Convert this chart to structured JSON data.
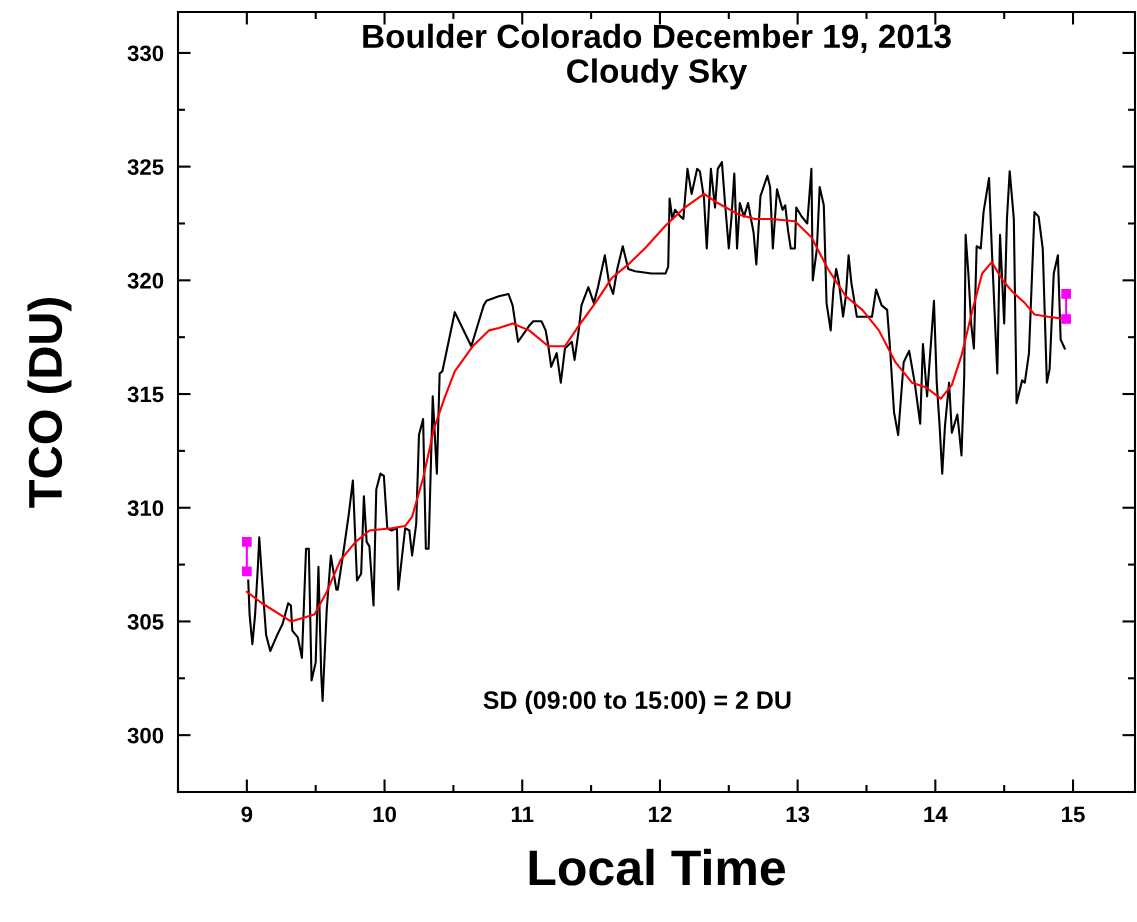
{
  "chart_data": {
    "type": "line",
    "title": "Boulder Colorado December 19, 2013\nCloudy Sky",
    "xlabel": "Local Time",
    "ylabel": "TCO (DU)",
    "xlim": [
      8.5,
      15.45
    ],
    "xticks": [
      9,
      10,
      11,
      12,
      13,
      14,
      15
    ],
    "ylim": [
      297.5,
      331.8
    ],
    "yticks": [
      300,
      305,
      310,
      315,
      320,
      325,
      330
    ],
    "grid": false,
    "annotations": [
      "SD (09:00 to 15:00) = 2 DU"
    ],
    "series": [
      {
        "color": "#000000",
        "marker": "none",
        "x": [
          9.01,
          9.02,
          9.04,
          9.06,
          9.08,
          9.09,
          9.11,
          9.14,
          9.17,
          9.22,
          9.26,
          9.3,
          9.32,
          9.33,
          9.37,
          9.4,
          9.43,
          9.45,
          9.47,
          9.5,
          9.52,
          9.54,
          9.55,
          9.58,
          9.61,
          9.65,
          9.66,
          9.7,
          9.74,
          9.77,
          9.8,
          9.83,
          9.85,
          9.87,
          9.89,
          9.92,
          9.94,
          9.97,
          9.995,
          10.02,
          10.05,
          10.09,
          10.1,
          10.15,
          10.18,
          10.2,
          10.23,
          10.25,
          10.28,
          10.3,
          10.32,
          10.35,
          10.38,
          10.4,
          10.42,
          10.51,
          10.63,
          10.68,
          10.72,
          10.74,
          10.83,
          10.9,
          10.93,
          10.97,
          11.05,
          11.08,
          11.14,
          11.17,
          11.19,
          11.21,
          11.25,
          11.28,
          11.31,
          11.36,
          11.38,
          11.41,
          11.43,
          11.48,
          11.52,
          11.55,
          11.6,
          11.63,
          11.66,
          11.69,
          11.73,
          11.77,
          11.82,
          11.94,
          12.04,
          12.06,
          12.07,
          12.09,
          12.11,
          12.15,
          12.17,
          12.2,
          12.23,
          12.27,
          12.29,
          12.32,
          12.34,
          12.37,
          12.4,
          12.42,
          12.45,
          12.47,
          12.5,
          12.52,
          12.54,
          12.56,
          12.58,
          12.61,
          12.64,
          12.68,
          12.7,
          12.73,
          12.78,
          12.8,
          12.82,
          12.85,
          12.89,
          12.91,
          12.93,
          12.95,
          12.98,
          12.99,
          13.03,
          13.07,
          13.1,
          13.11,
          13.14,
          13.16,
          13.19,
          13.21,
          13.24,
          13.26,
          13.28,
          13.3,
          13.33,
          13.35,
          13.37,
          13.39,
          13.43,
          13.49,
          13.54,
          13.57,
          13.61,
          13.65,
          13.67,
          13.7,
          13.73,
          13.77,
          13.81,
          13.85,
          13.89,
          13.91,
          13.94,
          13.97,
          13.99,
          14.01,
          14.03,
          14.05,
          14.07,
          14.1,
          14.12,
          14.16,
          14.19,
          14.21,
          14.22,
          14.24,
          14.26,
          14.28,
          14.3,
          14.33,
          14.35,
          14.39,
          14.41,
          14.45,
          14.47,
          14.5,
          14.52,
          14.54,
          14.57,
          14.59,
          14.63,
          14.65,
          14.68,
          14.7,
          14.72,
          14.75,
          14.78,
          14.81,
          14.83,
          14.86,
          14.89,
          14.91,
          14.94
        ],
        "values": [
          306.8,
          305.3,
          304.0,
          305.3,
          307.4,
          308.7,
          306.9,
          304.4,
          303.7,
          304.4,
          304.9,
          305.8,
          305.7,
          304.6,
          304.3,
          303.4,
          308.2,
          308.2,
          302.4,
          303.2,
          307.4,
          302.7,
          301.5,
          305.5,
          307.9,
          306.4,
          306.4,
          308.0,
          309.7,
          311.2,
          306.8,
          307.1,
          310.5,
          308.5,
          308.3,
          305.7,
          310.8,
          311.5,
          311.4,
          309.1,
          309.0,
          309.1,
          306.4,
          309.1,
          309.0,
          307.9,
          309.3,
          313.2,
          313.9,
          308.2,
          308.2,
          314.9,
          311.5,
          315.9,
          316.0,
          318.6,
          317.1,
          318.1,
          318.9,
          319.1,
          319.3,
          319.4,
          318.9,
          317.3,
          318.0,
          318.2,
          318.2,
          317.8,
          317.1,
          316.2,
          316.8,
          315.5,
          317.0,
          317.3,
          316.5,
          317.8,
          318.9,
          319.7,
          319.0,
          319.7,
          321.1,
          319.9,
          319.4,
          320.5,
          321.5,
          320.5,
          320.4,
          320.3,
          320.3,
          320.6,
          323.6,
          322.7,
          323.1,
          322.8,
          322.7,
          324.9,
          323.8,
          324.9,
          324.8,
          323.6,
          321.4,
          324.9,
          323.2,
          324.9,
          325.2,
          323.6,
          321.4,
          322.8,
          324.7,
          321.4,
          323.4,
          322.8,
          323.4,
          322.1,
          320.7,
          323.7,
          324.6,
          324.1,
          321.4,
          324.0,
          323.1,
          323.3,
          322.2,
          321.4,
          321.4,
          323.2,
          322.8,
          322.5,
          324.9,
          320.0,
          321.4,
          324.1,
          323.3,
          319.0,
          317.8,
          319.6,
          320.5,
          319.9,
          318.4,
          319.3,
          321.1,
          319.9,
          318.4,
          318.4,
          318.4,
          319.6,
          318.9,
          318.7,
          317.1,
          314.2,
          313.2,
          316.4,
          316.9,
          315.5,
          313.7,
          317.2,
          314.9,
          317.4,
          319.1,
          315.5,
          313.7,
          311.5,
          313.6,
          315.5,
          313.3,
          314.1,
          312.3,
          315.8,
          322.0,
          320.3,
          318.1,
          317.0,
          321.5,
          321.4,
          323.0,
          324.5,
          321.4,
          315.9,
          322.0,
          318.1,
          322.7,
          324.8,
          322.7,
          314.6,
          315.6,
          315.5,
          316.8,
          319.9,
          323.0,
          322.8,
          321.4,
          315.5,
          316.1,
          320.3,
          321.1,
          317.4,
          317.0
        ]
      },
      {
        "color": "#ff0000",
        "marker": "none",
        "x": [
          9.0,
          9.11,
          9.32,
          9.49,
          9.58,
          9.68,
          9.79,
          9.89,
          10.05,
          10.15,
          10.2,
          10.28,
          10.36,
          10.44,
          10.51,
          10.64,
          10.76,
          10.83,
          10.93,
          11.05,
          11.19,
          11.31,
          11.41,
          11.53,
          11.65,
          11.77,
          11.89,
          12.04,
          12.18,
          12.32,
          12.42,
          12.57,
          12.69,
          12.81,
          12.98,
          13.1,
          13.22,
          13.35,
          13.47,
          13.59,
          13.71,
          13.83,
          13.93,
          14.04,
          14.12,
          14.19,
          14.27,
          14.34,
          14.41,
          14.49,
          14.56,
          14.65,
          14.72,
          14.82,
          14.94
        ],
        "values": [
          306.3,
          305.8,
          305.0,
          305.3,
          306.3,
          307.7,
          308.5,
          309.0,
          309.1,
          309.2,
          309.6,
          311.3,
          313.5,
          314.9,
          316.0,
          317.1,
          317.8,
          317.9,
          318.1,
          317.8,
          317.1,
          317.1,
          318.0,
          319.0,
          320.1,
          320.7,
          321.4,
          322.4,
          323.2,
          323.8,
          323.4,
          322.9,
          322.7,
          322.7,
          322.6,
          321.9,
          320.5,
          319.3,
          318.7,
          317.8,
          316.4,
          315.5,
          315.3,
          314.8,
          315.4,
          316.7,
          318.7,
          320.3,
          320.8,
          320.0,
          319.5,
          319.0,
          318.5,
          318.4,
          318.3
        ]
      },
      {
        "color": "#ff00ff",
        "marker": "square",
        "x": [
          9.0,
          9.0
        ],
        "values": [
          308.5,
          307.2
        ]
      },
      {
        "color": "#ff00ff",
        "marker": "square",
        "x": [
          14.95,
          14.95
        ],
        "values": [
          319.4,
          318.3
        ]
      }
    ]
  }
}
